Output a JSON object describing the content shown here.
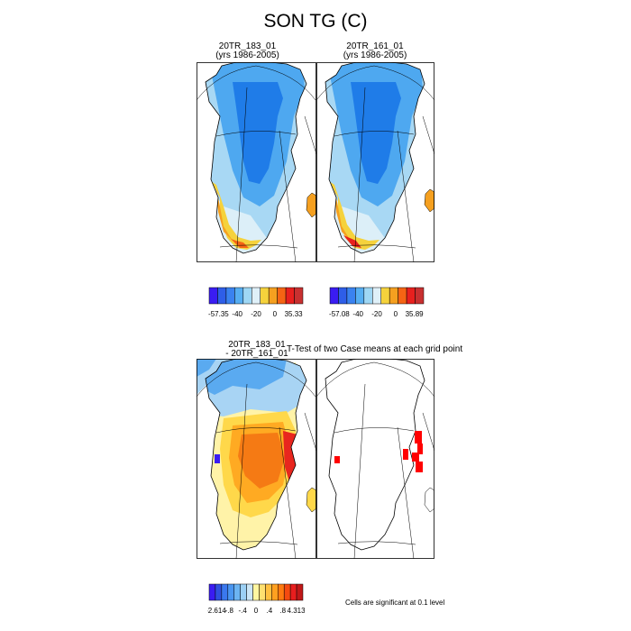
{
  "title": "SON TG (C)",
  "chart_data": [
    {
      "type": "heatmap",
      "title": "20TR_183_01",
      "subtitle": "(yrs 1986-2005)",
      "colorbar": {
        "colors": [
          "#3a1cf2",
          "#2e5ee8",
          "#3a82f0",
          "#56aef2",
          "#9fd7f4",
          "#dff0f8",
          "#f5d23c",
          "#f5a020",
          "#f56414",
          "#e8201e",
          "#c83030"
        ],
        "tick_labels": [
          "-57.35",
          "-40",
          "-20",
          "0",
          "35.33"
        ]
      }
    },
    {
      "type": "heatmap",
      "title": "20TR_161_01",
      "subtitle": "(yrs 1986-2005)",
      "colorbar": {
        "colors": [
          "#3a1cf2",
          "#2e5ee8",
          "#3a82f0",
          "#56aef2",
          "#9fd7f4",
          "#dff0f8",
          "#f5d23c",
          "#f5a020",
          "#f56414",
          "#e8201e",
          "#c83030"
        ],
        "tick_labels": [
          "-57.08",
          "-40",
          "-20",
          "0",
          "35.89"
        ]
      }
    },
    {
      "type": "heatmap",
      "title": "20TR_183_01",
      "subtitle": "- 20TR_161_01",
      "colorbar": {
        "colors": [
          "#3a1cf2",
          "#2e50e0",
          "#3a78ee",
          "#4a96f0",
          "#6cb4f2",
          "#9cd0f4",
          "#cce6f6",
          "#fff6a0",
          "#ffe070",
          "#ffc040",
          "#ffa020",
          "#ff7a10",
          "#f54a10",
          "#e81e1e",
          "#c01818"
        ],
        "tick_labels": [
          "-2.614",
          "-.8",
          "-.4",
          "0",
          ".4",
          ".8",
          "4.313"
        ]
      }
    },
    {
      "type": "heatmap",
      "title": "T-Test of two Case means at each grid point",
      "note": "Cells are significant at 0.1 level",
      "significant_color": "#ff0000"
    }
  ],
  "palette": {
    "dark_blue": "#1f7ce8",
    "mid_blue": "#4ea8f0",
    "light_blue": "#a8d8f4",
    "pale": "#dceff8",
    "yellow": "#f5d23c",
    "orange": "#f5a020",
    "red_orange": "#f56414",
    "red": "#e8201e",
    "diff_light": "#fff3a8",
    "diff_yellow": "#ffd84a",
    "diff_orange": "#ffaa22",
    "diff_dark_orange": "#f57a14",
    "diff_red": "#e8261e",
    "neg_blue": "#5aaaf0",
    "neg_light": "#a8d4f4"
  }
}
